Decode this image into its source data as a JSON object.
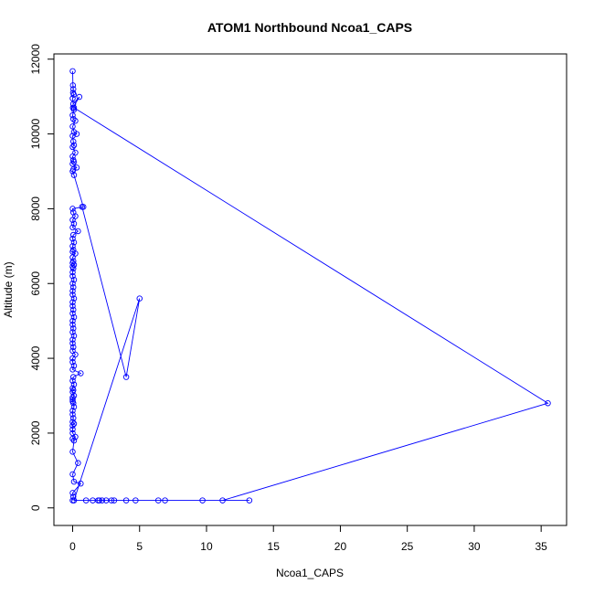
{
  "chart_data": {
    "type": "line",
    "title": "ATOM1 Northbound Ncoa1_CAPS",
    "xlabel": "Ncoa1_CAPS",
    "ylabel": "Altitude (m)",
    "xlim": [
      -1.4,
      36.9
    ],
    "ylim": [
      -470,
      12140
    ],
    "xticks": [
      0,
      5,
      10,
      15,
      20,
      25,
      30,
      35
    ],
    "yticks": [
      0,
      2000,
      4000,
      6000,
      8000,
      10000,
      12000
    ],
    "grid": false,
    "marker": "open-circle",
    "line_color": "#0000ff",
    "series": [
      {
        "x": [
          0.0,
          0.02,
          0.05,
          0.03,
          0.08,
          0.0,
          0.04,
          0.5,
          0.02,
          0.1,
          0.0,
          0.05,
          0.2,
          0.0,
          0.1,
          0.3,
          0.0,
          0.05,
          0.1,
          0.0,
          0.2,
          0.0,
          0.05,
          0.1,
          0.0,
          0.3,
          0.05,
          0.0,
          0.1,
          0.8,
          0.0,
          0.05,
          0.2,
          0.0,
          0.1,
          0.0,
          0.4,
          0.05,
          0.0,
          0.1,
          0.0,
          0.05,
          0.0,
          0.2,
          0.0,
          0.05,
          0.0,
          0.1,
          0.0,
          0.05,
          0.0,
          0.0,
          0.1,
          0.0,
          0.05,
          0.0,
          0.0,
          0.1,
          0.0,
          0.0,
          0.05,
          0.0,
          0.1,
          0.0,
          0.0,
          0.05,
          0.0,
          0.1,
          0.0,
          0.0,
          0.05,
          0.0,
          0.2,
          0.0,
          0.0,
          0.1,
          0.0,
          0.6,
          0.05,
          0.0,
          0.1,
          0.0,
          0.05,
          0.0,
          0.1,
          0.0,
          0.0,
          0.0,
          0.05,
          0.1,
          0.0,
          0.0,
          0.05,
          0.0,
          0.1,
          0.0,
          0.0,
          0.0,
          0.2,
          0.0,
          0.1,
          0.0,
          0.4,
          0.0,
          0.1,
          0.6,
          0.0,
          0.05,
          0.0
        ],
        "y": [
          11680,
          11300,
          11200,
          11100,
          11050,
          10950,
          10800,
          10990,
          10700,
          10650,
          10500,
          10400,
          10350,
          10200,
          10050,
          10000,
          9950,
          9800,
          9700,
          9650,
          9500,
          9400,
          9300,
          9250,
          9200,
          9100,
          9050,
          9000,
          8900,
          8050,
          8000,
          7900,
          7800,
          7700,
          7600,
          7500,
          7400,
          7300,
          7200,
          7100,
          7000,
          6900,
          6850,
          6800,
          6700,
          6600,
          6550,
          6500,
          6450,
          6400,
          6300,
          6200,
          6100,
          6000,
          5900,
          5800,
          5700,
          5600,
          5500,
          5400,
          5300,
          5200,
          5100,
          5000,
          4900,
          4800,
          4700,
          4600,
          4500,
          4400,
          4300,
          4200,
          4100,
          4000,
          3900,
          3800,
          3700,
          3600,
          3500,
          3400,
          3300,
          3200,
          3150,
          3100,
          3000,
          2950,
          2900,
          2850,
          2800,
          2700,
          2600,
          2500,
          2400,
          2300,
          2250,
          2200,
          2100,
          2000,
          1900,
          1850,
          1800,
          1500,
          1200,
          900,
          700,
          650,
          400,
          300,
          200
        ]
      },
      {
        "x": [
          0.1,
          35.5,
          11.2,
          13.2,
          9.7,
          6.9,
          6.4,
          4.7,
          4.0,
          3.1,
          2.9,
          2.5,
          2.2,
          2.0,
          1.9,
          1.5,
          1.0,
          0.1,
          5.0,
          4.0,
          0.7
        ],
        "y": [
          10700,
          2800,
          200,
          200,
          200,
          200,
          200,
          200,
          200,
          200,
          200,
          200,
          200,
          200,
          200,
          200,
          200,
          200,
          5600,
          3500,
          8050
        ]
      }
    ]
  }
}
